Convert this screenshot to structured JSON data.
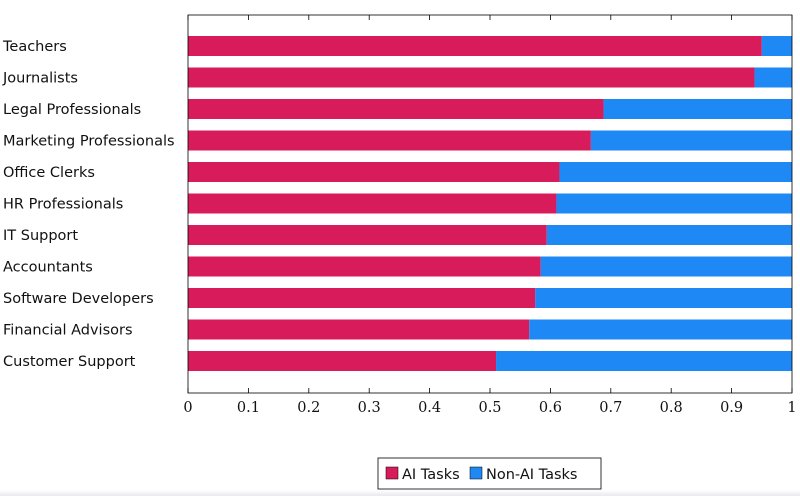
{
  "chart_data": {
    "type": "bar",
    "orientation": "horizontal",
    "stacked": true,
    "categories": [
      "Teachers",
      "Journalists",
      "Legal Professionals",
      "Marketing Professionals",
      "Office Clerks",
      "HR Professionals",
      "IT Support",
      "Accountants",
      "Software Developers",
      "Financial Advisors",
      "Customer Support"
    ],
    "series": [
      {
        "name": "AI Tasks",
        "color": "#d81b5a",
        "values": [
          0.95,
          0.938,
          0.688,
          0.667,
          0.615,
          0.61,
          0.594,
          0.584,
          0.575,
          0.565,
          0.51
        ]
      },
      {
        "name": "Non-AI Tasks",
        "color": "#1e88f5",
        "values": [
          0.05,
          0.062,
          0.312,
          0.333,
          0.385,
          0.39,
          0.406,
          0.416,
          0.425,
          0.435,
          0.49
        ]
      }
    ],
    "xlim": [
      0,
      1
    ],
    "xticks": [
      0,
      0.1,
      0.2,
      0.3,
      0.4,
      0.5,
      0.6,
      0.7,
      0.8,
      0.9,
      1
    ],
    "xtick_labels": [
      "0",
      "0.1",
      "0.2",
      "0.3",
      "0.4",
      "0.5",
      "0.6",
      "0.7",
      "0.8",
      "0.9",
      "1"
    ],
    "title": "",
    "xlabel": "",
    "ylabel": "",
    "grid": false,
    "legend_position": "bottom-center"
  }
}
